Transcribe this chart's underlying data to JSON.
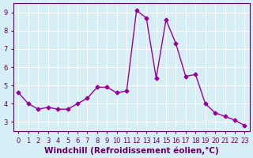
{
  "x": [
    0,
    1,
    2,
    3,
    4,
    5,
    6,
    7,
    8,
    9,
    10,
    11,
    12,
    13,
    14,
    15,
    16,
    17,
    18,
    19,
    20,
    21,
    22,
    23
  ],
  "y": [
    4.6,
    4.0,
    3.7,
    3.8,
    3.7,
    3.7,
    4.0,
    4.3,
    4.9,
    4.9,
    4.6,
    4.7,
    9.1,
    8.7,
    5.4,
    8.6,
    7.3,
    5.5,
    5.6,
    4.0,
    3.5,
    3.3,
    3.1,
    2.8
  ],
  "line_color": "#990099",
  "marker": "D",
  "markersize": 2.5,
  "linewidth": 1.0,
  "xlabel": "Windchill (Refroidissement éolien,°C)",
  "xlim": [
    -0.5,
    23.5
  ],
  "ylim": [
    2.5,
    9.5
  ],
  "yticks": [
    3,
    4,
    5,
    6,
    7,
    8,
    9
  ],
  "xticks": [
    0,
    1,
    2,
    3,
    4,
    5,
    6,
    7,
    8,
    9,
    10,
    11,
    12,
    13,
    14,
    15,
    16,
    17,
    18,
    19,
    20,
    21,
    22,
    23
  ],
  "bg_color": "#d6eef5",
  "grid_color": "#ffffff",
  "axis_color": "#660066",
  "tick_label_color": "#660066",
  "xlabel_color": "#660066",
  "xlabel_fontsize": 7.5,
  "tick_fontsize": 6.0
}
